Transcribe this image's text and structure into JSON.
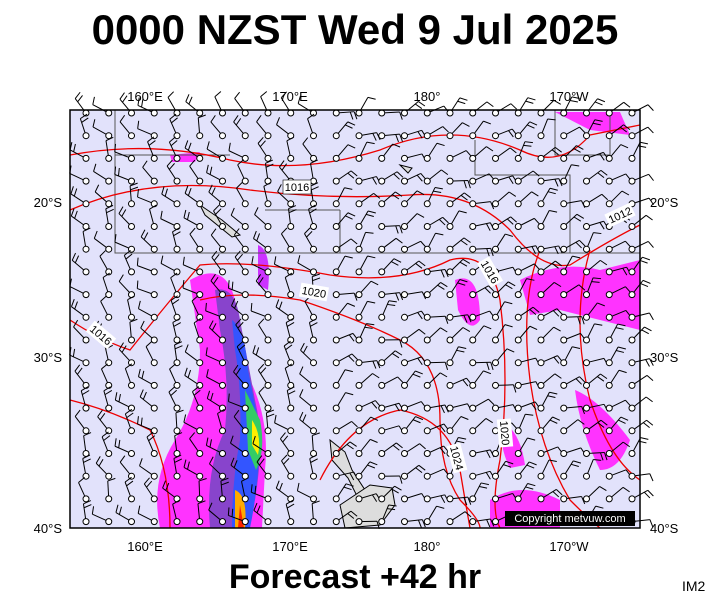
{
  "title": "0000 NZST Wed 9 Jul 2025",
  "map": {
    "top_labels": [
      "160°E",
      "170°E",
      "180°",
      "170°W"
    ],
    "bottom_labels": [
      "160°E",
      "170°E",
      "180°",
      "170°W"
    ],
    "left_labels": [
      "20°S",
      "30°S",
      "40°S"
    ],
    "right_labels": [
      "20°S",
      "30°S",
      "40°S"
    ],
    "isobar_labels": [
      "1016",
      "1020",
      "1016",
      "1012",
      "1016",
      "1024",
      "1020"
    ],
    "copyright": "Copyright metvuw.com"
  },
  "footer": "Forecast +42 hr",
  "corner_label": "IM2"
}
